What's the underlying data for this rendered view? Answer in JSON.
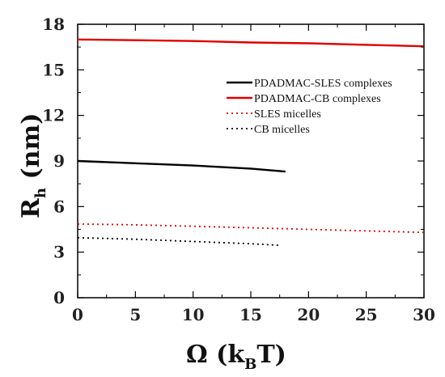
{
  "chart_data": {
    "type": "line",
    "title": "",
    "xlabel": {
      "main": "Ω (k",
      "sub": "B",
      "tail": "T)"
    },
    "ylabel": {
      "main": "R",
      "sub": "h",
      "tail": " (nm)"
    },
    "xlim": [
      0,
      30
    ],
    "ylim": [
      0,
      18
    ],
    "xticks": [
      0,
      5,
      10,
      15,
      20,
      25,
      30
    ],
    "yticks": [
      0,
      3,
      6,
      9,
      12,
      15,
      18
    ],
    "grid": false,
    "legend_position": "center-right",
    "series": [
      {
        "name": "PDADMAC-SLES complexes",
        "color": "#000000",
        "style": "solid",
        "x": [
          0,
          5,
          10,
          15,
          18
        ],
        "y": [
          9.0,
          8.85,
          8.7,
          8.5,
          8.3
        ]
      },
      {
        "name": "PDADMAC-CB complexes",
        "color": "#e00000",
        "style": "solid",
        "x": [
          0,
          5,
          10,
          15,
          20,
          25,
          30
        ],
        "y": [
          17.0,
          16.95,
          16.9,
          16.8,
          16.75,
          16.65,
          16.55
        ]
      },
      {
        "name": "SLES micelles",
        "color": "#e00000",
        "style": "dotted",
        "x": [
          0,
          5,
          10,
          15,
          20,
          25,
          30
        ],
        "y": [
          4.85,
          4.8,
          4.7,
          4.6,
          4.5,
          4.4,
          4.3
        ]
      },
      {
        "name": "CB micelles",
        "color": "#000000",
        "style": "dotted",
        "x": [
          0,
          5,
          10,
          15,
          17.5
        ],
        "y": [
          3.95,
          3.85,
          3.7,
          3.55,
          3.45
        ]
      }
    ]
  }
}
